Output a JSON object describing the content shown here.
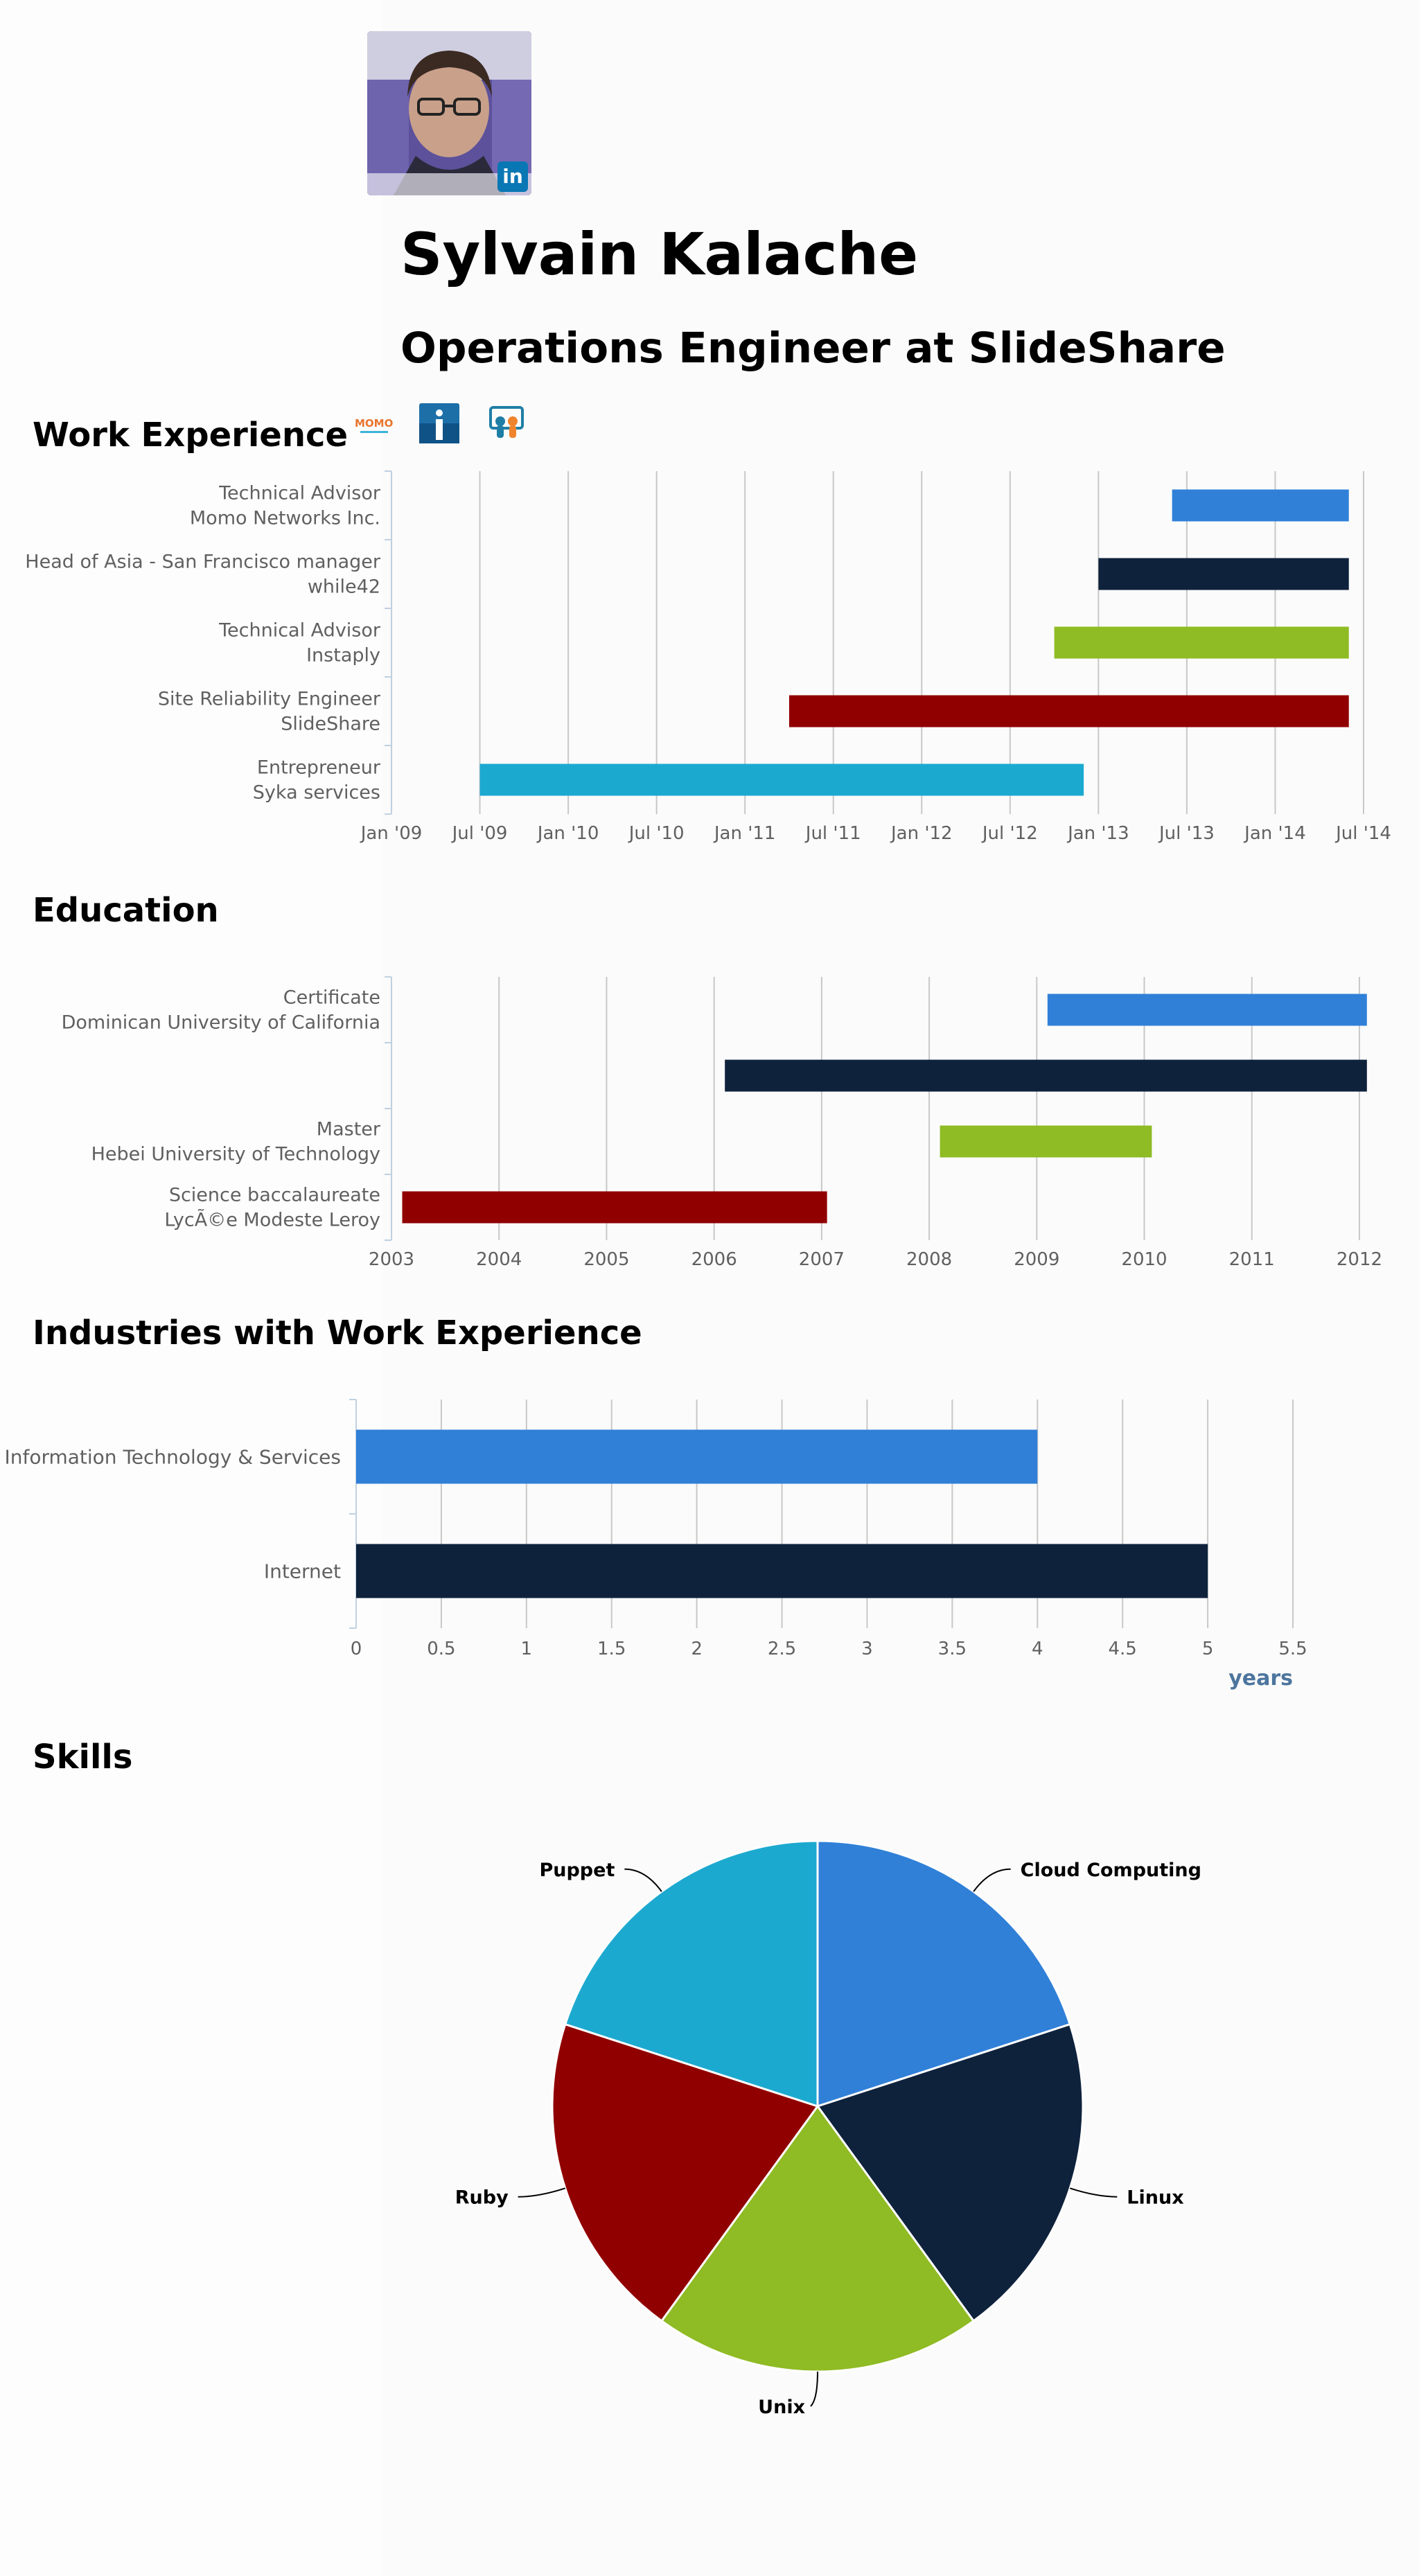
{
  "profile": {
    "name": "Sylvain Kalache",
    "headline": "Operations Engineer at SlideShare",
    "linkedin_badge": "in"
  },
  "sections": {
    "work": "Work Experience",
    "education": "Education",
    "industries": "Industries with Work Experience",
    "skills": "Skills"
  },
  "company_logos": [
    {
      "icon": "momo-logo",
      "text": "MOMO"
    },
    {
      "icon": "instaply-logo",
      "text": ""
    },
    {
      "icon": "slideshare-logo",
      "text": ""
    }
  ],
  "colors": {
    "blue": "#3080d8",
    "navy": "#0e223c",
    "green": "#8fbb24",
    "red": "#910000",
    "cyan": "#1ca9d0",
    "axis_title": "#4d759e"
  },
  "chart_data": [
    {
      "type": "bar",
      "subtype": "timeline",
      "axis_type": "datetime",
      "x_tick_labels": [
        "Jan '09",
        "Jul '09",
        "Jan '10",
        "Jul '10",
        "Jan '11",
        "Jul '11",
        "Jan '12",
        "Jul '12",
        "Jan '13",
        "Jul '13",
        "Jan '14",
        "Jul '14"
      ],
      "xlim": [
        "2009-01",
        "2014-07"
      ],
      "grid": true,
      "rows": [
        {
          "label": [
            "Technical Advisor",
            "Momo Networks Inc."
          ],
          "start": "2013-06",
          "end": "2014-06",
          "color": "#3080d8"
        },
        {
          "label": [
            "Head of Asia - San Francisco manager",
            "while42"
          ],
          "start": "2013-01",
          "end": "2014-06",
          "color": "#0e223c"
        },
        {
          "label": [
            "Technical Advisor",
            "Instaply"
          ],
          "start": "2012-10",
          "end": "2014-06",
          "color": "#8fbb24"
        },
        {
          "label": [
            "Site Reliability Engineer",
            "SlideShare"
          ],
          "start": "2011-04",
          "end": "2014-06",
          "color": "#910000"
        },
        {
          "label": [
            "Entrepreneur",
            "Syka services"
          ],
          "start": "2009-07",
          "end": "2012-12",
          "color": "#1ca9d0"
        }
      ]
    },
    {
      "type": "bar",
      "subtype": "timeline",
      "axis_type": "year",
      "x_tick_labels": [
        "2003",
        "2004",
        "2005",
        "2006",
        "2007",
        "2008",
        "2009",
        "2010",
        "2011",
        "2012"
      ],
      "xlim": [
        2003,
        2012.2
      ],
      "grid": true,
      "rows": [
        {
          "label": [
            "Certificate",
            "Dominican University of California"
          ],
          "start": 2009.1,
          "end": 2012.07,
          "color": "#3080d8"
        },
        {
          "label": [],
          "start": 2006.1,
          "end": 2012.07,
          "color": "#0e223c"
        },
        {
          "label": [
            "Master",
            "Hebei University of Technology"
          ],
          "start": 2008.1,
          "end": 2010.07,
          "color": "#8fbb24"
        },
        {
          "label": [
            "Science baccalaureate",
            "LycÃ©e Modeste Leroy"
          ],
          "start": 2003.1,
          "end": 2007.05,
          "color": "#910000"
        }
      ]
    },
    {
      "type": "bar",
      "orientation": "horizontal",
      "categories": [
        "Information Technology & Services",
        "Internet"
      ],
      "values": [
        4,
        5
      ],
      "colors": [
        "#3080d8",
        "#0e223c"
      ],
      "x_tick_labels": [
        "0",
        "0.5",
        "1",
        "1.5",
        "2",
        "2.5",
        "3",
        "3.5",
        "4",
        "4.5",
        "5",
        "5.5"
      ],
      "xlim": [
        0,
        5.5
      ],
      "xlabel": "years",
      "grid": true
    },
    {
      "type": "pie",
      "labels": [
        "Cloud Computing",
        "Linux",
        "Unix",
        "Ruby",
        "Puppet"
      ],
      "values": [
        1,
        1,
        1,
        1,
        1
      ],
      "colors": [
        "#3080d8",
        "#0e223c",
        "#8fbb24",
        "#910000",
        "#1ca9d0"
      ]
    }
  ]
}
